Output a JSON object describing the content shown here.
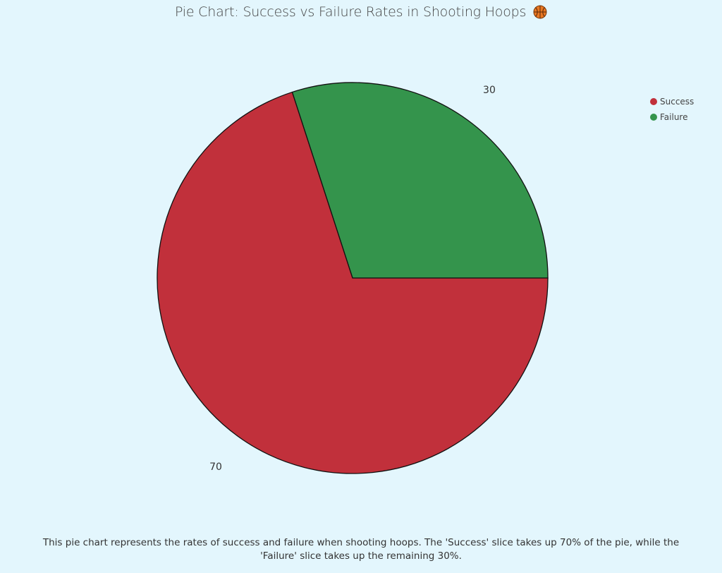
{
  "chart_data": {
    "type": "pie",
    "title": "Pie Chart: Success vs Failure Rates in Shooting Hoops",
    "title_emoji": "basketball",
    "categories": [
      "Success",
      "Failure"
    ],
    "values": [
      70,
      30
    ],
    "colors": [
      "#c1303b",
      "#34944c"
    ],
    "data_labels": [
      "70",
      "30"
    ],
    "legend": {
      "placement": "top-right",
      "entries": [
        "Success",
        "Failure"
      ]
    },
    "caption": "This pie chart represents the rates of success and failure when shooting hoops. The 'Success' slice takes up 70% of the pie, while the 'Failure' slice takes up the remaining 30%."
  }
}
